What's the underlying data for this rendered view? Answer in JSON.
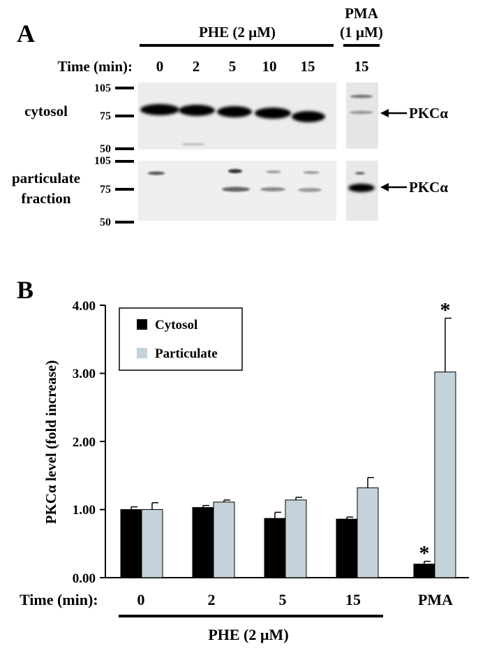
{
  "panel_a": {
    "label": "A",
    "treatment_main": "PHE (2 µM)",
    "treatment_pma_line1": "PMA",
    "treatment_pma_line2": "(1 µM)",
    "time_label": "Time (min):",
    "lane_times": [
      "0",
      "2",
      "5",
      "10",
      "15"
    ],
    "pma_time": "15",
    "rows": [
      {
        "label_lines": [
          "cytosol"
        ],
        "markers": [
          "105",
          "75",
          "50"
        ],
        "arrow_label": "PKCα"
      },
      {
        "label_lines": [
          "particulate",
          "fraction"
        ],
        "markers": [
          "105",
          "75",
          "50"
        ],
        "arrow_label": "PKCα"
      }
    ]
  },
  "panel_b": {
    "label": "B",
    "time_label": "Time (min):",
    "underline_label": "PHE (2 µM)",
    "significance_marker": "*"
  },
  "chart_data": {
    "type": "bar",
    "categories": [
      "0",
      "2",
      "5",
      "15",
      "PMA"
    ],
    "series": [
      {
        "name": "Cytosol",
        "color": "#000000",
        "values": [
          1.0,
          1.03,
          0.87,
          0.86,
          0.2
        ],
        "errors": [
          0.04,
          0.03,
          0.09,
          0.03,
          0.04
        ],
        "significant": [
          false,
          false,
          false,
          false,
          true
        ]
      },
      {
        "name": "Particulate",
        "color": "#c4d2da",
        "values": [
          1.0,
          1.11,
          1.14,
          1.32,
          3.02
        ],
        "errors": [
          0.1,
          0.03,
          0.04,
          0.15,
          0.79
        ],
        "significant": [
          false,
          false,
          false,
          false,
          true
        ]
      }
    ],
    "ylabel": "PKCα level (fold increase)",
    "xlabel": "Time (min):",
    "ylim": [
      0,
      4
    ],
    "yticks": [
      "0.00",
      "1.00",
      "2.00",
      "3.00",
      "4.00"
    ],
    "legend_position": "top-left",
    "grid": false
  }
}
